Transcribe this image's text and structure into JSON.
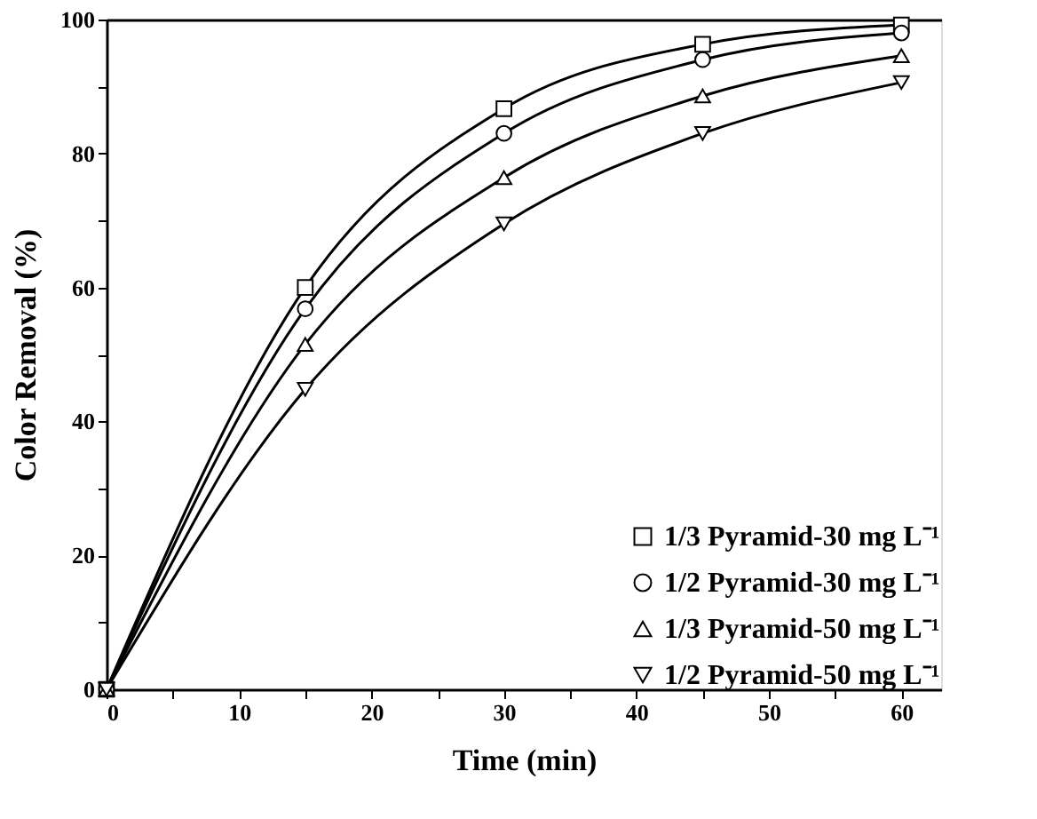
{
  "chart_data": {
    "type": "line",
    "xlabel": "Time (min)",
    "ylabel": "Color Removal (%)",
    "x": [
      0,
      15,
      30,
      45,
      60
    ],
    "series": [
      {
        "name": "1/3 Pyramid-30 mg L⁻¹",
        "color": "#000000",
        "marker": "square",
        "values": [
          0,
          60,
          86.7,
          96.3,
          99.2
        ]
      },
      {
        "name": "1/2 Pyramid-30 mg L⁻¹",
        "color": "#000000",
        "marker": "circle",
        "values": [
          0,
          56.8,
          83,
          94,
          98
        ]
      },
      {
        "name": "1/3 Pyramid-50 mg L⁻¹",
        "color": "#000000",
        "marker": "triangle",
        "values": [
          0,
          51.5,
          76.4,
          88.6,
          94.6
        ]
      },
      {
        "name": "1/2 Pyramid-50 mg L⁻¹",
        "color": "#000000",
        "marker": "triangle-down",
        "values": [
          0,
          44.8,
          69.5,
          83,
          90.6
        ]
      }
    ],
    "xlim": [
      0,
      63
    ],
    "xticks": [
      0,
      {
        "value": 5,
        "label": null
      },
      10,
      {
        "value": 15,
        "label": null
      },
      20,
      {
        "value": 25,
        "label": null
      },
      30,
      {
        "value": 35,
        "label": null
      },
      40,
      {
        "value": 45,
        "label": null
      },
      50,
      {
        "value": 55,
        "label": null
      },
      60
    ],
    "ylim": [
      0,
      100
    ],
    "yticks": [
      0,
      {
        "value": 10,
        "label": null
      },
      20,
      {
        "value": 30,
        "label": null
      },
      40,
      {
        "value": 50,
        "label": null
      },
      60,
      {
        "value": 70,
        "label": null
      },
      80,
      {
        "value": 90,
        "label": null
      },
      100
    ],
    "legend": "bottom right",
    "grid": false,
    "line_style": "solid"
  }
}
